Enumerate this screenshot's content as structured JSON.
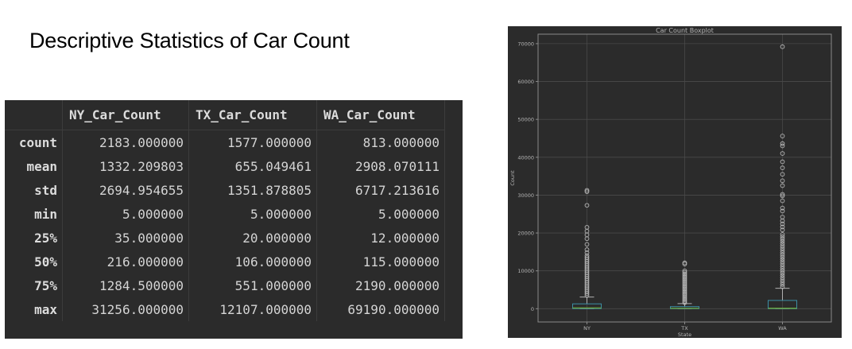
{
  "page": {
    "title": "Descriptive Statistics of Car Count"
  },
  "stats_table": {
    "columns": [
      "NY_Car_Count",
      "TX_Car_Count",
      "WA_Car_Count"
    ],
    "rows": [
      {
        "label": "count",
        "values": [
          "2183.000000",
          "1577.000000",
          "813.000000"
        ]
      },
      {
        "label": "mean",
        "values": [
          "1332.209803",
          "655.049461",
          "2908.070111"
        ]
      },
      {
        "label": "std",
        "values": [
          "2694.954655",
          "1351.878805",
          "6717.213616"
        ]
      },
      {
        "label": "min",
        "values": [
          "5.000000",
          "5.000000",
          "5.000000"
        ]
      },
      {
        "label": "25%",
        "values": [
          "35.000000",
          "20.000000",
          "12.000000"
        ]
      },
      {
        "label": "50%",
        "values": [
          "216.000000",
          "106.000000",
          "115.000000"
        ]
      },
      {
        "label": "75%",
        "values": [
          "1284.500000",
          "551.000000",
          "2190.000000"
        ]
      },
      {
        "label": "max",
        "values": [
          "31256.000000",
          "12107.000000",
          "69190.000000"
        ]
      }
    ]
  },
  "chart_data": [
    {
      "type": "table",
      "columns": [
        "NY_Car_Count",
        "TX_Car_Count",
        "WA_Car_Count"
      ],
      "row_labels": [
        "count",
        "mean",
        "std",
        "min",
        "25%",
        "50%",
        "75%",
        "max"
      ],
      "values": [
        [
          2183.0,
          1577.0,
          813.0
        ],
        [
          1332.209803,
          655.049461,
          2908.070111
        ],
        [
          2694.954655,
          1351.878805,
          6717.213616
        ],
        [
          5.0,
          5.0,
          5.0
        ],
        [
          35.0,
          20.0,
          12.0
        ],
        [
          216.0,
          106.0,
          115.0
        ],
        [
          1284.5,
          551.0,
          2190.0
        ],
        [
          31256.0,
          12107.0,
          69190.0
        ]
      ]
    },
    {
      "type": "boxplot",
      "title": "Car Count Boxplot",
      "xlabel": "State",
      "ylabel": "Count",
      "ylim": [
        -3500,
        72500
      ],
      "yticks": [
        0,
        10000,
        20000,
        30000,
        40000,
        50000,
        60000,
        70000
      ],
      "ytick_labels": [
        "0",
        "10000",
        "20000",
        "30000",
        "40000",
        "50000",
        "60000",
        "70000"
      ],
      "grid": true,
      "categories": [
        "NY",
        "TX",
        "WA"
      ],
      "boxes": [
        {
          "name": "NY",
          "min": 5,
          "q1": 35,
          "median": 216,
          "q3": 1284.5,
          "whisker_high": 3100,
          "max": 31256
        },
        {
          "name": "TX",
          "min": 5,
          "q1": 20,
          "median": 106,
          "q3": 551,
          "whisker_high": 1350,
          "max": 12107
        },
        {
          "name": "WA",
          "min": 5,
          "q1": 12,
          "median": 115,
          "q3": 2190,
          "whisker_high": 5400,
          "max": 69190
        }
      ],
      "outliers": [
        [
          3500,
          4000,
          4500,
          5000,
          5500,
          6000,
          6500,
          7000,
          7500,
          8000,
          8500,
          9000,
          9500,
          10000,
          10500,
          11000,
          11500,
          12000,
          12500,
          13000,
          13500,
          14000,
          14800,
          15600,
          17000,
          18500,
          19500,
          20500,
          21500,
          27300,
          30900,
          31256
        ],
        [
          1600,
          2000,
          2400,
          2800,
          3200,
          3600,
          4000,
          4400,
          4800,
          5200,
          5600,
          6000,
          6400,
          6800,
          7200,
          7600,
          8000,
          8400,
          8800,
          9200,
          9600,
          10000,
          11800,
          12107
        ],
        [
          5800,
          6400,
          7000,
          7600,
          8200,
          8800,
          9400,
          10000,
          10600,
          11200,
          11800,
          12400,
          13000,
          13600,
          14200,
          14800,
          15400,
          16000,
          16600,
          17200,
          17800,
          18400,
          19000,
          19600,
          20800,
          21600,
          22400,
          23200,
          24200,
          25800,
          26600,
          28500,
          29800,
          30200,
          32500,
          33800,
          35500,
          37200,
          38800,
          41000,
          43000,
          43600,
          45600,
          69190
        ]
      ],
      "colors": {
        "box": "#3b8ea5",
        "median": "#6fae3a",
        "whisker": "#b0b0b0",
        "outlier": "#b8b8b8",
        "grid": "#4a4a4a",
        "axis": "#8a8a8a",
        "text": "#b5b5b5"
      }
    }
  ]
}
